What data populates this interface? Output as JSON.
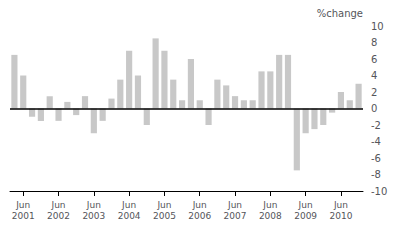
{
  "chart_data": {
    "type": "bar",
    "ylabel": "%change",
    "categories": [
      null,
      "Jun\n2001",
      null,
      null,
      null,
      "Jun\n2002",
      null,
      null,
      null,
      "Jun\n2003",
      null,
      null,
      null,
      "Jun\n2004",
      null,
      null,
      null,
      "Jun\n2005",
      null,
      null,
      null,
      "Jun\n2006",
      null,
      null,
      null,
      "Jun\n2007",
      null,
      null,
      null,
      "Jun\n2008",
      null,
      null,
      null,
      "Jun\n2009",
      null,
      null,
      null,
      "Jun\n2010",
      null,
      null
    ],
    "values": [
      6.5,
      4.0,
      -1.0,
      -1.5,
      1.5,
      -1.5,
      0.8,
      -0.8,
      1.5,
      -3.0,
      -1.5,
      1.2,
      3.5,
      7.0,
      4.0,
      -2.0,
      8.5,
      7.0,
      3.5,
      1.0,
      6.0,
      1.0,
      -2.0,
      3.5,
      2.8,
      1.5,
      1.0,
      1.0,
      4.5,
      4.5,
      6.5,
      6.5,
      -7.5,
      -3.0,
      -2.5,
      -2.0,
      -0.5,
      2.0,
      1.0,
      3.0
    ],
    "color": "#c8c8c8",
    "ylim": [
      -10,
      10
    ],
    "yticks": [
      -10,
      -8,
      -6,
      -4,
      -2,
      0,
      2,
      4,
      6,
      8,
      10
    ],
    "grid": false
  }
}
